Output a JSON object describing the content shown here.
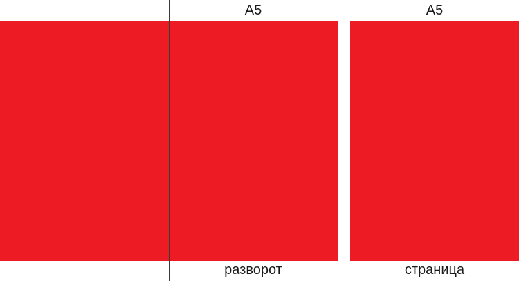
{
  "colors": {
    "panel_fill": "#ed1c24",
    "fold_line": "#3a3a3a",
    "background": "#ffffff"
  },
  "spread": {
    "size_label": "A5",
    "caption": "разворот"
  },
  "page": {
    "size_label": "A5",
    "caption": "страница"
  }
}
